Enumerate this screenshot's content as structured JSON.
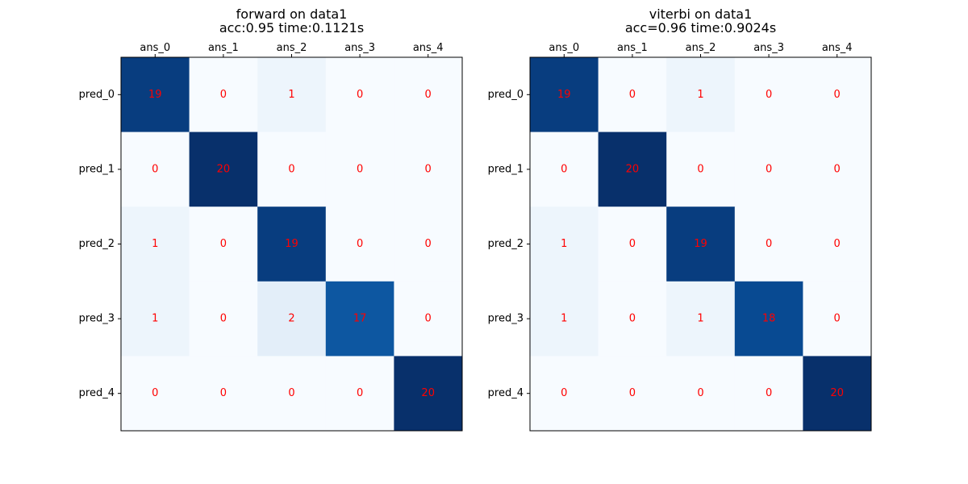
{
  "colors": {
    "cell_text": "#ff0000",
    "colormap": "Blues",
    "colormap_low": "#f7fbff",
    "colormap_high": "#08306b"
  },
  "chart_data": [
    {
      "type": "heatmap",
      "title_line1": "forward on data1",
      "title_line2": "acc:0.95 time:0.1121s",
      "x_categories": [
        "ans_0",
        "ans_1",
        "ans_2",
        "ans_3",
        "ans_4"
      ],
      "y_categories": [
        "pred_0",
        "pred_1",
        "pred_2",
        "pred_3",
        "pred_4"
      ],
      "x_tick_position": "top",
      "value_range": [
        0,
        20
      ],
      "values": [
        [
          19,
          0,
          1,
          0,
          0
        ],
        [
          0,
          20,
          0,
          0,
          0
        ],
        [
          1,
          0,
          19,
          0,
          0
        ],
        [
          1,
          0,
          2,
          17,
          0
        ],
        [
          0,
          0,
          0,
          0,
          20
        ]
      ]
    },
    {
      "type": "heatmap",
      "title_line1": "viterbi on data1",
      "title_line2": "acc=0.96 time:0.9024s",
      "x_categories": [
        "ans_0",
        "ans_1",
        "ans_2",
        "ans_3",
        "ans_4"
      ],
      "y_categories": [
        "pred_0",
        "pred_1",
        "pred_2",
        "pred_3",
        "pred_4"
      ],
      "x_tick_position": "top",
      "value_range": [
        0,
        20
      ],
      "values": [
        [
          19,
          0,
          1,
          0,
          0
        ],
        [
          0,
          20,
          0,
          0,
          0
        ],
        [
          1,
          0,
          19,
          0,
          0
        ],
        [
          1,
          0,
          1,
          18,
          0
        ],
        [
          0,
          0,
          0,
          0,
          20
        ]
      ]
    }
  ]
}
